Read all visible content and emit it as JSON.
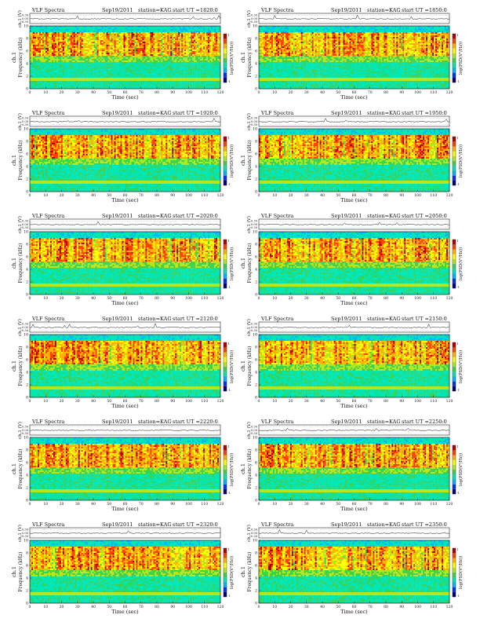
{
  "figure": {
    "colors": {
      "colorscale": [
        "#00007a",
        "#0030ff",
        "#00b4ff",
        "#00e6b4",
        "#3cd250",
        "#b4e61e",
        "#ffff00",
        "#ffb000",
        "#ff4000",
        "#b40000"
      ],
      "trace": "#222222",
      "axes": "#222222"
    },
    "panels": [
      {
        "heading": "VLF Spectra",
        "date": "Sep19/2011",
        "station": "station=KAG",
        "start": "start UT =1820:0",
        "cb_label": "log(PSD(V²/Hz))"
      },
      {
        "heading": "VLF Spectra",
        "date": "Sep19/2011",
        "station": "station=KAG",
        "start": "start UT =1850:0",
        "cb_label": "log(PSD(V²/Hz))"
      },
      {
        "heading": "VLF Spectra",
        "date": "Sep19/2011",
        "station": "station=KAG",
        "start": "start UT =1920:0",
        "cb_label": "log(PSD(V²/Hz))"
      },
      {
        "heading": "VLF Spectra",
        "date": "Sep19/2011",
        "station": "station=KAG",
        "start": "start UT =1950:0",
        "cb_label": "log(PSD(V²/Hz))"
      },
      {
        "heading": "VLF Spectra",
        "date": "Sep19/2011",
        "station": "station=KAG",
        "start": "start UT =2020:0",
        "cb_label": "log(PSD(V²/Hz))"
      },
      {
        "heading": "VLF Spectra",
        "date": "Sep19/2011",
        "station": "station=KAG",
        "start": "start UT =2050:0",
        "cb_label": "log(PSD(V²/Hz))"
      },
      {
        "heading": "VLF Spectra",
        "date": "Sep19/2011",
        "station": "station=KAG",
        "start": "start UT =2120:0",
        "cb_label": "log(PSD(V²/Hz))"
      },
      {
        "heading": "VLF Spectra",
        "date": "Sep19/2011",
        "station": "station=KAG",
        "start": "start UT =2150:0",
        "cb_label": "log(PSD(V²/Hz))"
      },
      {
        "heading": "VLF Spectra",
        "date": "Sep19/2011",
        "station": "station=KAG",
        "start": "start UT =2220:0",
        "cb_label": "log(PSD(V²/Hz))"
      },
      {
        "heading": "VLF Spectra",
        "date": "Sep19/2011",
        "station": "station=KAG",
        "start": "start UT =2250:0",
        "cb_label": "log(PSD(V²/Hz))"
      },
      {
        "heading": "VLF Spectra",
        "date": "Sep19/2011",
        "station": "station=KAG",
        "start": "start UT =2320:0",
        "cb_label": "log(PSD(V²/Hz))"
      },
      {
        "heading": "VLF Spectra",
        "date": "Sep19/2011",
        "station": "station=KAG",
        "start": "start UT =2350:0",
        "cb_label": "log(PSD(V²/Hz))"
      }
    ]
  },
  "chart_data": {
    "type": "heatmap",
    "xlabel": "Time (sec)",
    "ylabel": "Frequency (kHz)",
    "channel_label": "ch.1",
    "waveform_ylabel": "ch.1 (V)",
    "xlim": [
      0,
      120
    ],
    "ylim": [
      0,
      10
    ],
    "x_ticks": [
      0,
      10,
      20,
      30,
      40,
      50,
      60,
      70,
      80,
      90,
      100,
      110,
      120
    ],
    "y_ticks": [
      0,
      2,
      4,
      6,
      8,
      10
    ],
    "waveform_ticks": [
      "0.30",
      "0.00",
      "-0.30"
    ],
    "colorbar_ticks": [
      "1",
      "-1"
    ],
    "grid": false,
    "panel_count": 12
  }
}
